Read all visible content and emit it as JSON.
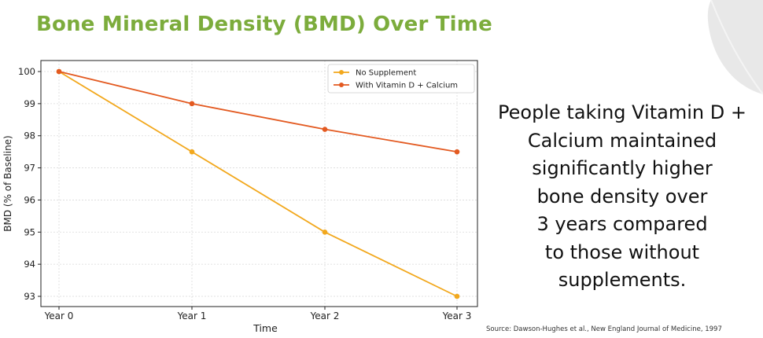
{
  "colors": {
    "title": "#7cac3c",
    "no_supplement": "#f2a81d",
    "vitamin": "#e35a21",
    "decoration": "#e8e8e8"
  },
  "chart_data": {
    "type": "line",
    "title": "Bone Mineral Density (BMD) Over Time",
    "xlabel": "Time",
    "ylabel": "BMD (% of Baseline)",
    "categories": [
      "Year 0",
      "Year 1",
      "Year 2",
      "Year 3"
    ],
    "ylim": [
      93,
      100
    ],
    "yticks": [
      93,
      94,
      95,
      96,
      97,
      98,
      99,
      100
    ],
    "grid": true,
    "legend_position": "top-right",
    "series": [
      {
        "name": "No Supplement",
        "color": "#f2a81d",
        "values": [
          100,
          97.5,
          95,
          93
        ]
      },
      {
        "name": "With Vitamin D + Calcium",
        "color": "#e35a21",
        "values": [
          100,
          99,
          98.2,
          97.5
        ]
      }
    ]
  },
  "message": {
    "lines": [
      "People taking Vitamin D +",
      "Calcium maintained",
      "significantly higher",
      "bone density over",
      "3 years compared",
      "to those without",
      "supplements."
    ]
  },
  "source": "Source: Dawson-Hughes et al., New England Journal of Medicine, 1997"
}
